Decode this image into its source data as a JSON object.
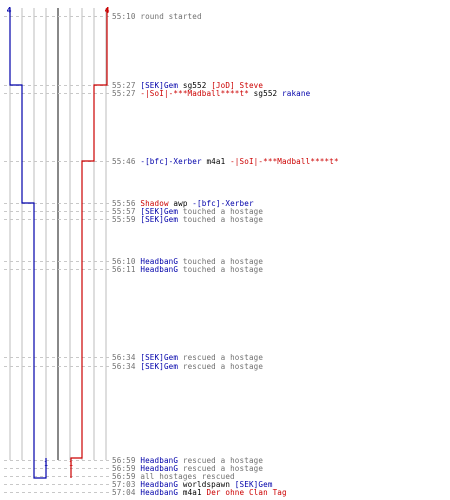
{
  "colors": {
    "team_blue": "#0000aa",
    "team_red": "#cc0000",
    "neutral_text": "#707070",
    "grid_line": "#bdbdbd",
    "dashed_line": "#c8c8c8",
    "axis_dark": "#555555"
  },
  "header": {
    "blue_score": "4",
    "red_score": "4"
  },
  "timeline": {
    "player_lanes": 10,
    "blue_alive_steps": [
      4,
      3,
      2,
      1,
      0
    ],
    "red_alive_steps": [
      4,
      3,
      2,
      1,
      0
    ],
    "markers": {
      "blue_last": "1",
      "red_last": "1"
    }
  },
  "events": [
    {
      "time": "55:10",
      "parts": [
        {
          "text": "round started",
          "c": "neutral_text"
        }
      ]
    },
    {
      "time": "55:27",
      "parts": [
        {
          "text": "[SEK]Gem",
          "c": "team_blue"
        },
        {
          "text": " sg552 ",
          "c": "black"
        },
        {
          "text": "[JoD] Steve",
          "c": "team_red"
        }
      ]
    },
    {
      "time": "55:27",
      "parts": [
        {
          "text": "-|SoI|-***Madball****t*",
          "c": "team_red"
        },
        {
          "text": " sg552 ",
          "c": "black"
        },
        {
          "text": "rakane",
          "c": "team_blue"
        }
      ]
    },
    {
      "time": "55:46",
      "parts": [
        {
          "text": "-[bfc]-Xerber",
          "c": "team_blue"
        },
        {
          "text": " m4a1 ",
          "c": "black"
        },
        {
          "text": "-|SoI|-***Madball****t*",
          "c": "team_red"
        }
      ]
    },
    {
      "time": "55:56",
      "parts": [
        {
          "text": "Shadow",
          "c": "team_red"
        },
        {
          "text": " awp ",
          "c": "black"
        },
        {
          "text": "-[bfc]-Xerber",
          "c": "team_blue"
        }
      ]
    },
    {
      "time": "55:57",
      "parts": [
        {
          "text": "[SEK]Gem",
          "c": "team_blue"
        },
        {
          "text": " touched a hostage",
          "c": "neutral_text"
        }
      ]
    },
    {
      "time": "55:59",
      "parts": [
        {
          "text": "[SEK]Gem",
          "c": "team_blue"
        },
        {
          "text": " touched a hostage",
          "c": "neutral_text"
        }
      ]
    },
    {
      "time": "56:10",
      "parts": [
        {
          "text": "HeadbanG",
          "c": "team_blue"
        },
        {
          "text": " touched a hostage",
          "c": "neutral_text"
        }
      ]
    },
    {
      "time": "56:11",
      "parts": [
        {
          "text": "HeadbanG",
          "c": "team_blue"
        },
        {
          "text": " touched a hostage",
          "c": "neutral_text"
        }
      ]
    },
    {
      "time": "56:34",
      "parts": [
        {
          "text": "[SEK]Gem",
          "c": "team_blue"
        },
        {
          "text": " rescued a hostage",
          "c": "neutral_text"
        }
      ]
    },
    {
      "time": "56:34",
      "parts": [
        {
          "text": "[SEK]Gem",
          "c": "team_blue"
        },
        {
          "text": " rescued a hostage",
          "c": "neutral_text"
        }
      ]
    },
    {
      "time": "56:59",
      "parts": [
        {
          "text": "HeadbanG",
          "c": "team_blue"
        },
        {
          "text": " rescued a hostage",
          "c": "neutral_text"
        }
      ]
    },
    {
      "time": "56:59",
      "parts": [
        {
          "text": "HeadbanG",
          "c": "team_blue"
        },
        {
          "text": " rescued a hostage",
          "c": "neutral_text"
        }
      ]
    },
    {
      "time": "56:59",
      "parts": [
        {
          "text": "all hostages rescued",
          "c": "neutral_text"
        }
      ]
    },
    {
      "time": "57:03",
      "parts": [
        {
          "text": "HeadbanG",
          "c": "team_blue"
        },
        {
          "text": " worldspawn ",
          "c": "black"
        },
        {
          "text": "[SEK]Gem",
          "c": "team_blue"
        }
      ]
    },
    {
      "time": "57:04",
      "parts": [
        {
          "text": "HeadbanG",
          "c": "team_blue"
        },
        {
          "text": " m4a1 ",
          "c": "black"
        },
        {
          "text": "Der ohne Clan Tag",
          "c": "team_red"
        }
      ]
    }
  ]
}
